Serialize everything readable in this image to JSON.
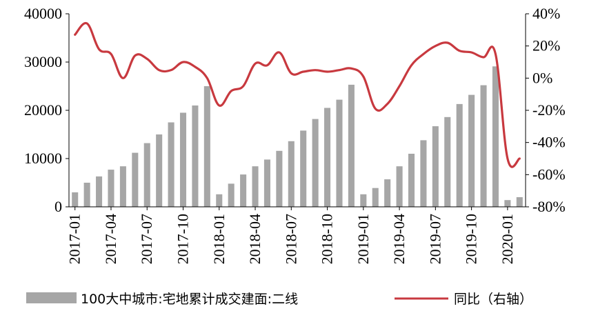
{
  "chart_data": {
    "type": "bar",
    "title": "",
    "xlabel": "",
    "ylabel": "",
    "x": [
      "2017-01",
      "2017-02",
      "2017-03",
      "2017-04",
      "2017-05",
      "2017-06",
      "2017-07",
      "2017-08",
      "2017-09",
      "2017-10",
      "2017-11",
      "2017-12",
      "2018-01",
      "2018-02",
      "2018-03",
      "2018-04",
      "2018-05",
      "2018-06",
      "2018-07",
      "2018-08",
      "2018-09",
      "2018-10",
      "2018-11",
      "2018-12",
      "2019-01",
      "2019-02",
      "2019-03",
      "2019-04",
      "2019-05",
      "2019-06",
      "2019-07",
      "2019-08",
      "2019-09",
      "2019-10",
      "2019-11",
      "2019-12",
      "2020-01",
      "2020-02"
    ],
    "x_tick_labels": [
      "2017-01",
      "2017-04",
      "2017-07",
      "2017-10",
      "2018-01",
      "2018-04",
      "2018-07",
      "2018-10",
      "2019-01",
      "2019-04",
      "2019-07",
      "2019-10",
      "2020-01"
    ],
    "ylim_left": [
      0,
      40000
    ],
    "y_ticks_left": [
      "0",
      "10000",
      "20000",
      "30000",
      "40000"
    ],
    "ylim_right": [
      -80,
      40
    ],
    "y_ticks_right": [
      "-80%",
      "-60%",
      "-40%",
      "-20%",
      "0%",
      "20%",
      "40%"
    ],
    "grid": false,
    "legend_position": "bottom",
    "series": [
      {
        "name": "100大中城市:宅地累计成交建面:二线",
        "type": "bar",
        "axis": "left",
        "color": "#a6a6a6",
        "values": [
          3000,
          5000,
          6300,
          7700,
          8400,
          11200,
          13200,
          15000,
          17500,
          19500,
          21000,
          25000,
          2600,
          4800,
          6700,
          8400,
          9800,
          11600,
          13600,
          15800,
          18200,
          20500,
          22200,
          25300,
          2600,
          3900,
          5700,
          8400,
          11000,
          13800,
          16700,
          18600,
          21300,
          23200,
          25200,
          29100,
          1400,
          2000
        ]
      },
      {
        "name": "同比（右轴）",
        "type": "line",
        "axis": "right",
        "color": "#c8393f",
        "values": [
          27,
          34,
          18,
          15,
          0,
          14,
          12,
          5,
          5,
          10,
          7,
          0,
          -17,
          -8,
          -5,
          9,
          8,
          16,
          3,
          4,
          5,
          4,
          5,
          6,
          1,
          -19,
          -16,
          -5,
          8,
          15,
          20,
          22,
          17,
          16,
          13,
          15,
          -50,
          -50
        ]
      }
    ]
  }
}
